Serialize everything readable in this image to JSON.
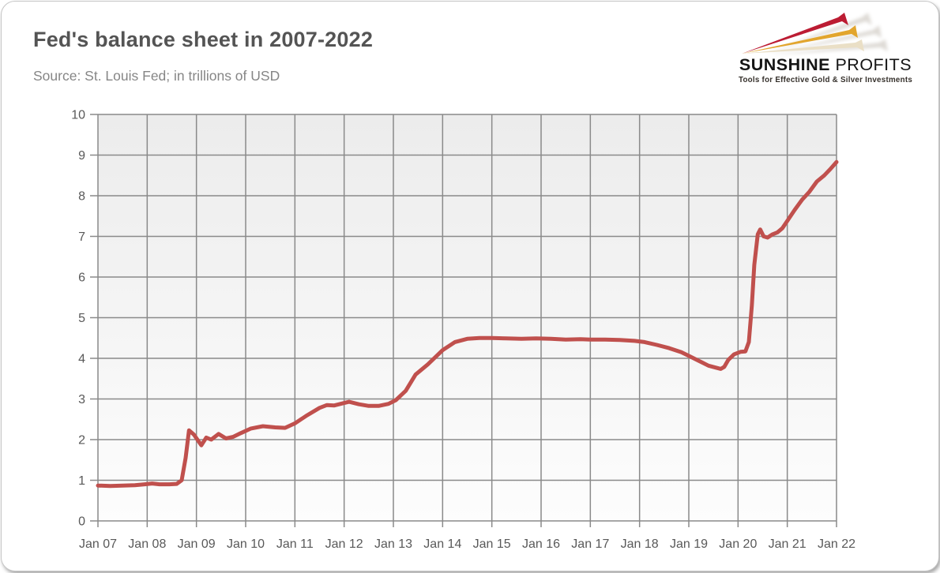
{
  "header": {
    "title": "Fed's balance sheet in 2007-2022",
    "subtitle": "Source: St. Louis Fed; in trillions of USD"
  },
  "logo": {
    "brand_word1": "SUNSHINE",
    "brand_word2": "PROFITS",
    "tagline": "Tools for Effective Gold & Silver Investments",
    "ray_colors": {
      "red": "#bc1c33",
      "gold": "#e2a52d",
      "cream": "#eadfc6",
      "shadow": "#a89f92"
    }
  },
  "chart_data": {
    "type": "line",
    "title": "Fed's balance sheet in 2007-2022",
    "subtitle": "Source: St. Louis Fed; in trillions of USD",
    "xlabel": "",
    "ylabel": "",
    "units": "trillions of USD",
    "xlim": [
      2007,
      2022
    ],
    "ylim": [
      0,
      10
    ],
    "grid": true,
    "legend": "none",
    "x_tick_labels": [
      "Jan 07",
      "Jan 08",
      "Jan 09",
      "Jan 10",
      "Jan 11",
      "Jan 12",
      "Jan 13",
      "Jan 14",
      "Jan 15",
      "Jan 16",
      "Jan 17",
      "Jan 18",
      "Jan 19",
      "Jan 20",
      "Jan 21",
      "Jan 22"
    ],
    "x_tick_years": [
      2007,
      2008,
      2009,
      2010,
      2011,
      2012,
      2013,
      2014,
      2015,
      2016,
      2017,
      2018,
      2019,
      2020,
      2021,
      2022
    ],
    "y_ticks": [
      0,
      1,
      2,
      3,
      4,
      5,
      6,
      7,
      8,
      9,
      10
    ],
    "colors": {
      "line": "#c0504d",
      "grid": "#8a8a8a",
      "tick_label": "#595959",
      "plot_bg_top": "#ececec",
      "plot_bg_bottom": "#fdfdfd"
    },
    "series": [
      {
        "name": "Fed total assets (USD trillions)",
        "points": [
          [
            2007.0,
            0.87
          ],
          [
            2007.25,
            0.86
          ],
          [
            2007.5,
            0.87
          ],
          [
            2007.75,
            0.88
          ],
          [
            2007.95,
            0.9
          ],
          [
            2008.1,
            0.92
          ],
          [
            2008.25,
            0.9
          ],
          [
            2008.45,
            0.9
          ],
          [
            2008.6,
            0.91
          ],
          [
            2008.7,
            1.0
          ],
          [
            2008.78,
            1.55
          ],
          [
            2008.85,
            2.23
          ],
          [
            2008.95,
            2.12
          ],
          [
            2009.1,
            1.86
          ],
          [
            2009.2,
            2.05
          ],
          [
            2009.3,
            2.0
          ],
          [
            2009.45,
            2.14
          ],
          [
            2009.6,
            2.03
          ],
          [
            2009.75,
            2.07
          ],
          [
            2009.9,
            2.16
          ],
          [
            2010.1,
            2.27
          ],
          [
            2010.35,
            2.33
          ],
          [
            2010.6,
            2.3
          ],
          [
            2010.8,
            2.29
          ],
          [
            2011.0,
            2.4
          ],
          [
            2011.25,
            2.6
          ],
          [
            2011.5,
            2.78
          ],
          [
            2011.65,
            2.85
          ],
          [
            2011.8,
            2.84
          ],
          [
            2012.0,
            2.9
          ],
          [
            2012.1,
            2.93
          ],
          [
            2012.3,
            2.87
          ],
          [
            2012.5,
            2.83
          ],
          [
            2012.7,
            2.83
          ],
          [
            2012.9,
            2.88
          ],
          [
            2013.05,
            2.97
          ],
          [
            2013.25,
            3.2
          ],
          [
            2013.45,
            3.6
          ],
          [
            2013.7,
            3.85
          ],
          [
            2014.0,
            4.2
          ],
          [
            2014.25,
            4.4
          ],
          [
            2014.5,
            4.48
          ],
          [
            2014.75,
            4.5
          ],
          [
            2015.0,
            4.5
          ],
          [
            2015.3,
            4.49
          ],
          [
            2015.6,
            4.48
          ],
          [
            2015.9,
            4.49
          ],
          [
            2016.2,
            4.48
          ],
          [
            2016.5,
            4.46
          ],
          [
            2016.8,
            4.47
          ],
          [
            2017.0,
            4.46
          ],
          [
            2017.3,
            4.46
          ],
          [
            2017.6,
            4.45
          ],
          [
            2017.9,
            4.43
          ],
          [
            2018.1,
            4.4
          ],
          [
            2018.35,
            4.33
          ],
          [
            2018.6,
            4.25
          ],
          [
            2018.85,
            4.15
          ],
          [
            2019.0,
            4.06
          ],
          [
            2019.2,
            3.94
          ],
          [
            2019.4,
            3.82
          ],
          [
            2019.55,
            3.77
          ],
          [
            2019.65,
            3.74
          ],
          [
            2019.72,
            3.79
          ],
          [
            2019.8,
            3.96
          ],
          [
            2019.92,
            4.1
          ],
          [
            2020.05,
            4.16
          ],
          [
            2020.15,
            4.17
          ],
          [
            2020.22,
            4.4
          ],
          [
            2020.28,
            5.3
          ],
          [
            2020.33,
            6.3
          ],
          [
            2020.4,
            7.05
          ],
          [
            2020.45,
            7.17
          ],
          [
            2020.52,
            7.0
          ],
          [
            2020.6,
            6.97
          ],
          [
            2020.7,
            7.05
          ],
          [
            2020.8,
            7.1
          ],
          [
            2020.9,
            7.2
          ],
          [
            2021.0,
            7.38
          ],
          [
            2021.15,
            7.65
          ],
          [
            2021.3,
            7.9
          ],
          [
            2021.45,
            8.1
          ],
          [
            2021.6,
            8.35
          ],
          [
            2021.75,
            8.5
          ],
          [
            2021.87,
            8.65
          ],
          [
            2022.0,
            8.83
          ]
        ]
      }
    ]
  }
}
